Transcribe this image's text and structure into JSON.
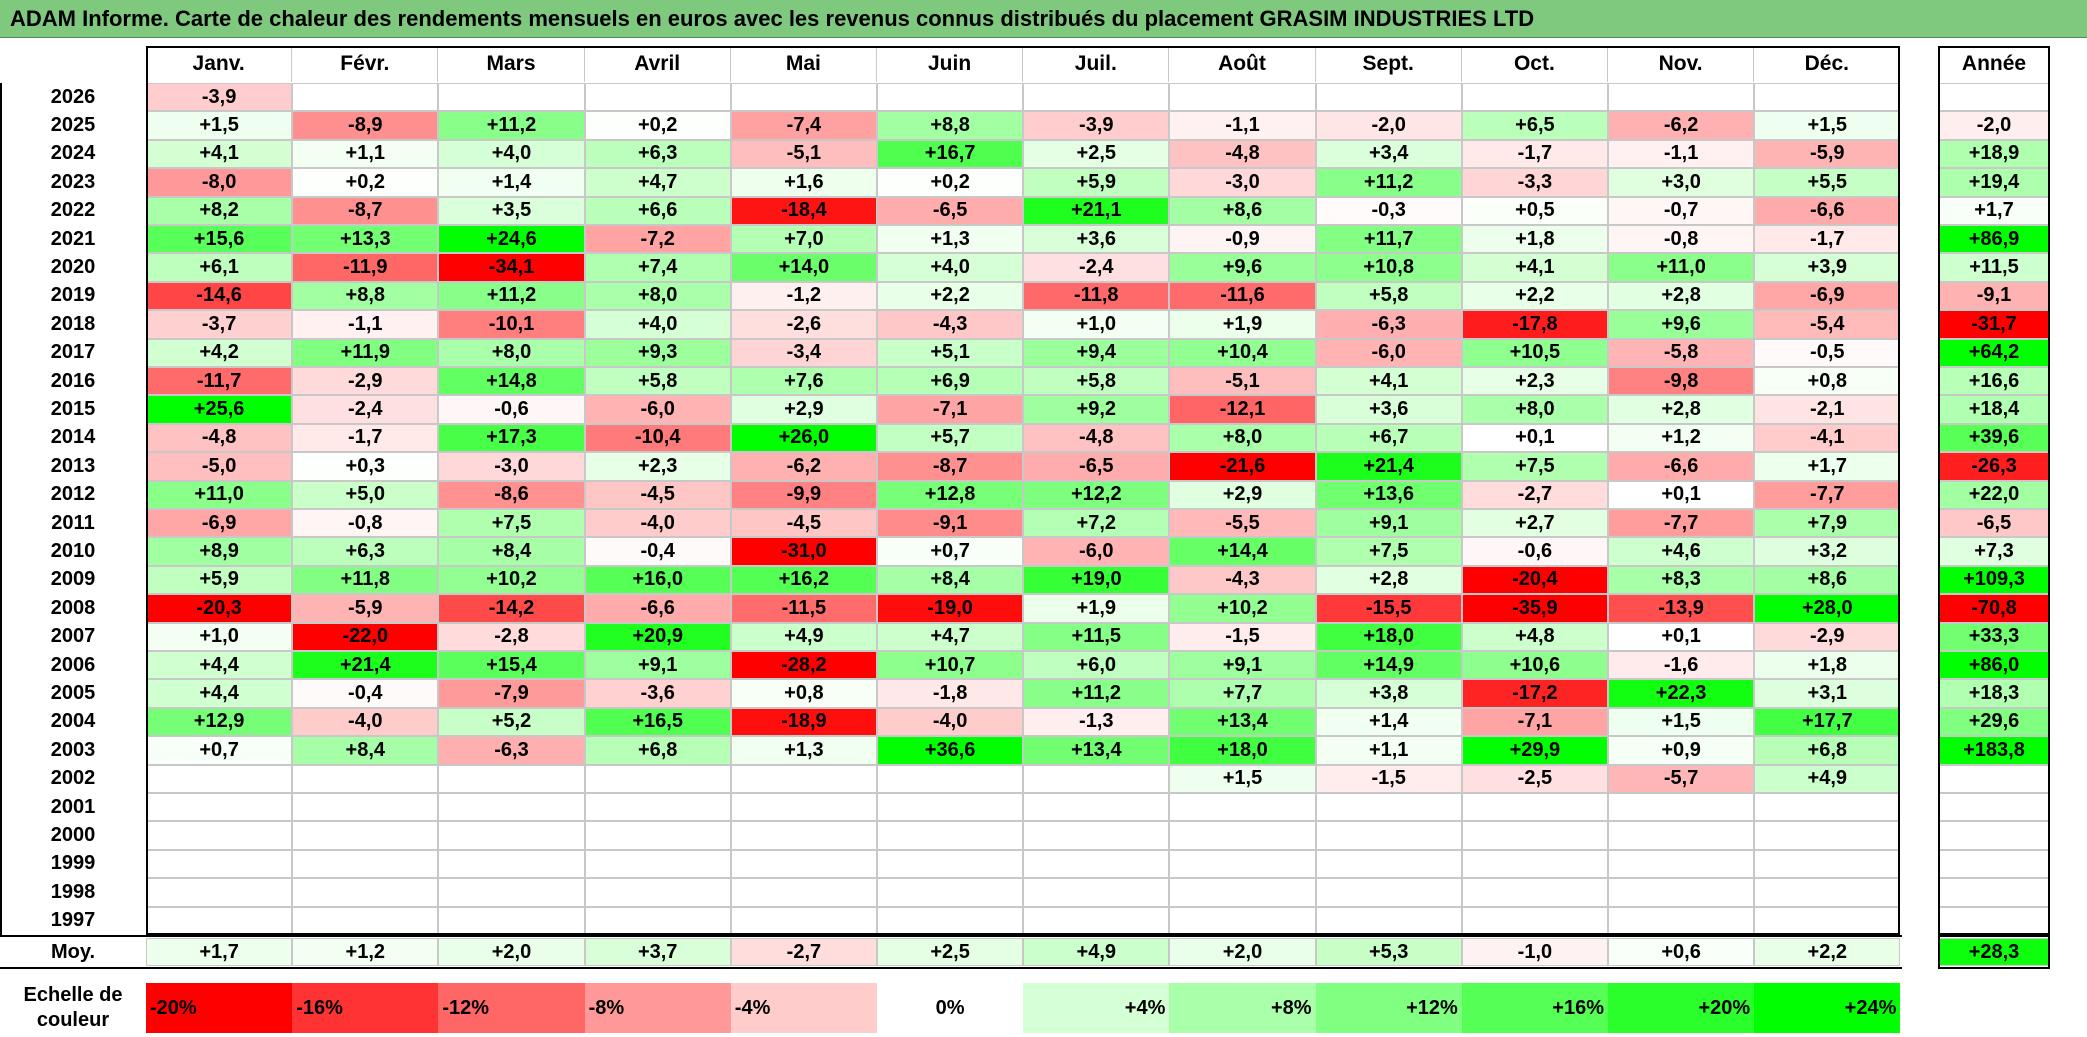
{
  "title": "ADAM Informe. Carte de chaleur des rendements mensuels en euros avec les revenus connus distribués du placement GRASIM INDUSTRIES LTD",
  "chart_data": {
    "type": "heatmap",
    "months": [
      "Janv.",
      "Févr.",
      "Mars",
      "Avril",
      "Mai",
      "Juin",
      "Juil.",
      "Août",
      "Sept.",
      "Oct.",
      "Nov.",
      "Déc."
    ],
    "year_header": "Année",
    "rows": [
      {
        "year": "2026",
        "values": [
          "-3,9",
          "",
          "",
          "",
          "",
          "",
          "",
          "",
          "",
          "",
          "",
          ""
        ],
        "annual": ""
      },
      {
        "year": "2025",
        "values": [
          "+1,5",
          "-8,9",
          "+11,2",
          "+0,2",
          "-7,4",
          "+8,8",
          "-3,9",
          "-1,1",
          "-2,0",
          "+6,5",
          "-6,2",
          "+1,5"
        ],
        "annual": "-2,0"
      },
      {
        "year": "2024",
        "values": [
          "+4,1",
          "+1,1",
          "+4,0",
          "+6,3",
          "-5,1",
          "+16,7",
          "+2,5",
          "-4,8",
          "+3,4",
          "-1,7",
          "-1,1",
          "-5,9"
        ],
        "annual": "+18,9"
      },
      {
        "year": "2023",
        "values": [
          "-8,0",
          "+0,2",
          "+1,4",
          "+4,7",
          "+1,6",
          "+0,2",
          "+5,9",
          "-3,0",
          "+11,2",
          "-3,3",
          "+3,0",
          "+5,5"
        ],
        "annual": "+19,4"
      },
      {
        "year": "2022",
        "values": [
          "+8,2",
          "-8,7",
          "+3,5",
          "+6,6",
          "-18,4",
          "-6,5",
          "+21,1",
          "+8,6",
          "-0,3",
          "+0,5",
          "-0,7",
          "-6,6"
        ],
        "annual": "+1,7"
      },
      {
        "year": "2021",
        "values": [
          "+15,6",
          "+13,3",
          "+24,6",
          "-7,2",
          "+7,0",
          "+1,3",
          "+3,6",
          "-0,9",
          "+11,7",
          "+1,8",
          "-0,8",
          "-1,7"
        ],
        "annual": "+86,9"
      },
      {
        "year": "2020",
        "values": [
          "+6,1",
          "-11,9",
          "-34,1",
          "+7,4",
          "+14,0",
          "+4,0",
          "-2,4",
          "+9,6",
          "+10,8",
          "+4,1",
          "+11,0",
          "+3,9"
        ],
        "annual": "+11,5"
      },
      {
        "year": "2019",
        "values": [
          "-14,6",
          "+8,8",
          "+11,2",
          "+8,0",
          "-1,2",
          "+2,2",
          "-11,8",
          "-11,6",
          "+5,8",
          "+2,2",
          "+2,8",
          "-6,9"
        ],
        "annual": "-9,1"
      },
      {
        "year": "2018",
        "values": [
          "-3,7",
          "-1,1",
          "-10,1",
          "+4,0",
          "-2,6",
          "-4,3",
          "+1,0",
          "+1,9",
          "-6,3",
          "-17,8",
          "+9,6",
          "-5,4"
        ],
        "annual": "-31,7"
      },
      {
        "year": "2017",
        "values": [
          "+4,2",
          "+11,9",
          "+8,0",
          "+9,3",
          "-3,4",
          "+5,1",
          "+9,4",
          "+10,4",
          "-6,0",
          "+10,5",
          "-5,8",
          "-0,5"
        ],
        "annual": "+64,2"
      },
      {
        "year": "2016",
        "values": [
          "-11,7",
          "-2,9",
          "+14,8",
          "+5,8",
          "+7,6",
          "+6,9",
          "+5,8",
          "-5,1",
          "+4,1",
          "+2,3",
          "-9,8",
          "+0,8"
        ],
        "annual": "+16,6"
      },
      {
        "year": "2015",
        "values": [
          "+25,6",
          "-2,4",
          "-0,6",
          "-6,0",
          "+2,9",
          "-7,1",
          "+9,2",
          "-12,1",
          "+3,6",
          "+8,0",
          "+2,8",
          "-2,1"
        ],
        "annual": "+18,4"
      },
      {
        "year": "2014",
        "values": [
          "-4,8",
          "-1,7",
          "+17,3",
          "-10,4",
          "+26,0",
          "+5,7",
          "-4,8",
          "+8,0",
          "+6,7",
          "+0,1",
          "+1,2",
          "-4,1"
        ],
        "annual": "+39,6"
      },
      {
        "year": "2013",
        "values": [
          "-5,0",
          "+0,3",
          "-3,0",
          "+2,3",
          "-6,2",
          "-8,7",
          "-6,5",
          "-21,6",
          "+21,4",
          "+7,5",
          "-6,6",
          "+1,7"
        ],
        "annual": "-26,3"
      },
      {
        "year": "2012",
        "values": [
          "+11,0",
          "+5,0",
          "-8,6",
          "-4,5",
          "-9,9",
          "+12,8",
          "+12,2",
          "+2,9",
          "+13,6",
          "-2,7",
          "+0,1",
          "-7,7"
        ],
        "annual": "+22,0"
      },
      {
        "year": "2011",
        "values": [
          "-6,9",
          "-0,8",
          "+7,5",
          "-4,0",
          "-4,5",
          "-9,1",
          "+7,2",
          "-5,5",
          "+9,1",
          "+2,7",
          "-7,7",
          "+7,9"
        ],
        "annual": "-6,5"
      },
      {
        "year": "2010",
        "values": [
          "+8,9",
          "+6,3",
          "+8,4",
          "-0,4",
          "-31,0",
          "+0,7",
          "-6,0",
          "+14,4",
          "+7,5",
          "-0,6",
          "+4,6",
          "+3,2"
        ],
        "annual": "+7,3"
      },
      {
        "year": "2009",
        "values": [
          "+5,9",
          "+11,8",
          "+10,2",
          "+16,0",
          "+16,2",
          "+8,4",
          "+19,0",
          "-4,3",
          "+2,8",
          "-20,4",
          "+8,3",
          "+8,6"
        ],
        "annual": "+109,3"
      },
      {
        "year": "2008",
        "values": [
          "-20,3",
          "-5,9",
          "-14,2",
          "-6,6",
          "-11,5",
          "-19,0",
          "+1,9",
          "+10,2",
          "-15,5",
          "-35,9",
          "-13,9",
          "+28,0"
        ],
        "annual": "-70,8"
      },
      {
        "year": "2007",
        "values": [
          "+1,0",
          "-22,0",
          "-2,8",
          "+20,9",
          "+4,9",
          "+4,7",
          "+11,5",
          "-1,5",
          "+18,0",
          "+4,8",
          "+0,1",
          "-2,9"
        ],
        "annual": "+33,3"
      },
      {
        "year": "2006",
        "values": [
          "+4,4",
          "+21,4",
          "+15,4",
          "+9,1",
          "-28,2",
          "+10,7",
          "+6,0",
          "+9,1",
          "+14,9",
          "+10,6",
          "-1,6",
          "+1,8"
        ],
        "annual": "+86,0"
      },
      {
        "year": "2005",
        "values": [
          "+4,4",
          "-0,4",
          "-7,9",
          "-3,6",
          "+0,8",
          "-1,8",
          "+11,2",
          "+7,7",
          "+3,8",
          "-17,2",
          "+22,3",
          "+3,1"
        ],
        "annual": "+18,3"
      },
      {
        "year": "2004",
        "values": [
          "+12,9",
          "-4,0",
          "+5,2",
          "+16,5",
          "-18,9",
          "-4,0",
          "-1,3",
          "+13,4",
          "+1,4",
          "-7,1",
          "+1,5",
          "+17,7"
        ],
        "annual": "+29,6"
      },
      {
        "year": "2003",
        "values": [
          "+0,7",
          "+8,4",
          "-6,3",
          "+6,8",
          "+1,3",
          "+36,6",
          "+13,4",
          "+18,0",
          "+1,1",
          "+29,9",
          "+0,9",
          "+6,8"
        ],
        "annual": "+183,8"
      },
      {
        "year": "2002",
        "values": [
          "",
          "",
          "",
          "",
          "",
          "",
          "",
          "+1,5",
          "-1,5",
          "-2,5",
          "-5,7",
          "+4,9"
        ],
        "annual": ""
      },
      {
        "year": "2001",
        "values": [
          "",
          "",
          "",
          "",
          "",
          "",
          "",
          "",
          "",
          "",
          "",
          ""
        ],
        "annual": ""
      },
      {
        "year": "2000",
        "values": [
          "",
          "",
          "",
          "",
          "",
          "",
          "",
          "",
          "",
          "",
          "",
          ""
        ],
        "annual": ""
      },
      {
        "year": "1999",
        "values": [
          "",
          "",
          "",
          "",
          "",
          "",
          "",
          "",
          "",
          "",
          "",
          ""
        ],
        "annual": ""
      },
      {
        "year": "1998",
        "values": [
          "",
          "",
          "",
          "",
          "",
          "",
          "",
          "",
          "",
          "",
          "",
          ""
        ],
        "annual": ""
      },
      {
        "year": "1997",
        "values": [
          "",
          "",
          "",
          "",
          "",
          "",
          "",
          "",
          "",
          "",
          "",
          ""
        ],
        "annual": ""
      }
    ],
    "average": {
      "label": "Moy.",
      "values": [
        "+1,7",
        "+1,2",
        "+2,0",
        "+3,7",
        "-2,7",
        "+2,5",
        "+4,9",
        "+2,0",
        "+5,3",
        "-1,0",
        "+0,6",
        "+2,2"
      ],
      "annual": "+28,3"
    },
    "color_scale": {
      "label": "Echelle de couleur",
      "steps": [
        "-20%",
        "-16%",
        "-12%",
        "-8%",
        "-4%",
        "0%",
        "+4%",
        "+8%",
        "+12%",
        "+16%",
        "+20%",
        "+24%"
      ],
      "negative_color": "#ff0000",
      "positive_color": "#00ff00",
      "neutral_color": "#ffffff"
    }
  }
}
